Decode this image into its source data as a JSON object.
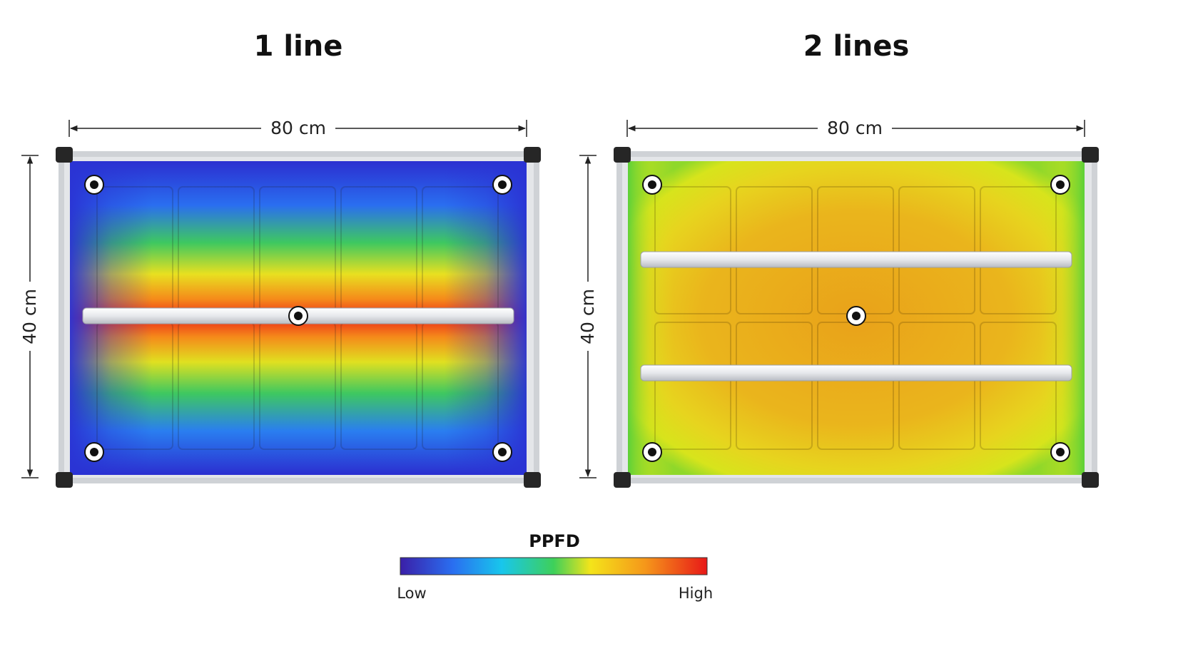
{
  "panels": [
    {
      "title": "1 line",
      "width_label": "80 cm",
      "height_label": "40 cm",
      "light_bars": 1,
      "icons": [
        "sensor-point-icon"
      ]
    },
    {
      "title": "2 lines",
      "width_label": "80 cm",
      "height_label": "40 cm",
      "light_bars": 2,
      "icons": [
        "sensor-point-icon"
      ]
    }
  ],
  "legend": {
    "title": "PPFD",
    "low_label": "Low",
    "high_label": "High",
    "colors": [
      "#3a1fa8",
      "#2a6ef0",
      "#18c6ec",
      "#3ed05a",
      "#f4e41a",
      "#f5961a",
      "#e81818"
    ]
  }
}
